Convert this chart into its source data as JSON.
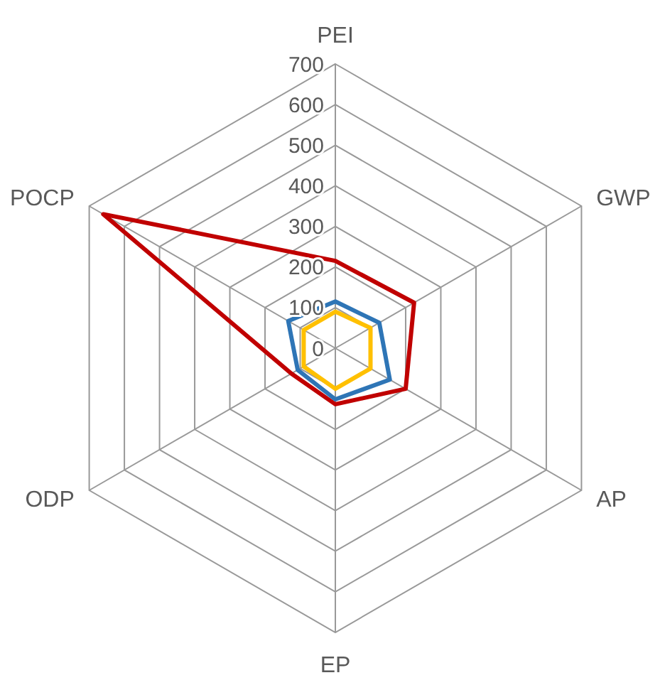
{
  "chart_data": {
    "type": "radar",
    "categories": [
      "PEI",
      "GWP",
      "AP",
      "EP",
      "ODP",
      "POCP"
    ],
    "series": [
      {
        "color": "#c00000",
        "values": [
          215,
          224,
          200,
          138,
          125,
          660
        ]
      },
      {
        "color": "#2e75b6",
        "values": [
          115,
          125,
          155,
          126,
          107,
          134
        ]
      },
      {
        "color": "#ffc000",
        "values": [
          90,
          100,
          100,
          100,
          90,
          90
        ]
      }
    ],
    "ylim": [
      0,
      700
    ],
    "yticks": [
      0,
      100,
      200,
      300,
      400,
      500,
      600,
      700
    ],
    "grid": true
  }
}
